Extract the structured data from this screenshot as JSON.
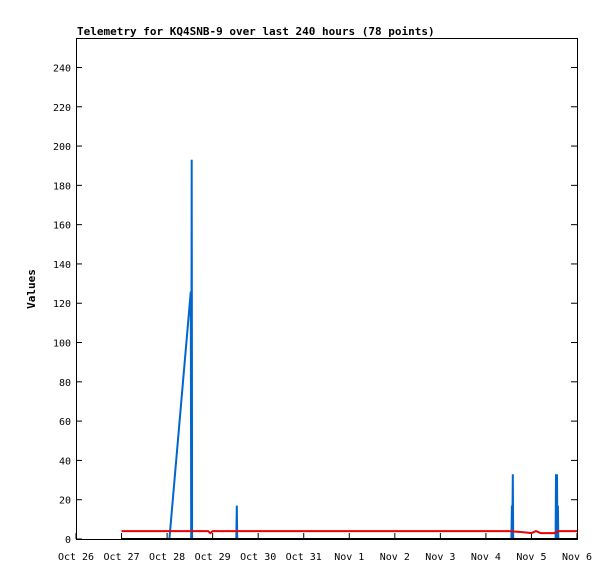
{
  "chart_data": {
    "type": "line",
    "title": "Telemetry for KQ4SNB-9 over last 240 hours (78 points)",
    "ylabel": "Values",
    "xlabel": "",
    "ylim": [
      0,
      255
    ],
    "xlim": [
      0,
      11
    ],
    "yticks": [
      0,
      20,
      40,
      60,
      80,
      100,
      120,
      140,
      160,
      180,
      200,
      220,
      240
    ],
    "x_categories": [
      "Oct 26",
      "Oct 27",
      "Oct 28",
      "Oct 29",
      "Oct 30",
      "Oct 31",
      "Nov 1",
      "Nov 2",
      "Nov 3",
      "Nov 4",
      "Nov 5",
      "Nov 6"
    ],
    "grid": false,
    "series": [
      {
        "color": "#0066cc",
        "points": [
          [
            2.05,
            0
          ],
          [
            2.52,
            126
          ],
          [
            2.53,
            0
          ],
          [
            2.54,
            193
          ],
          [
            2.55,
            0
          ],
          [
            3.52,
            0
          ],
          [
            3.53,
            17
          ],
          [
            3.54,
            0
          ],
          [
            9.56,
            0
          ],
          [
            9.57,
            17
          ],
          [
            9.58,
            0
          ],
          [
            9.59,
            33
          ],
          [
            9.6,
            0
          ],
          [
            10.53,
            0
          ],
          [
            10.54,
            33
          ],
          [
            10.55,
            0
          ],
          [
            10.56,
            33
          ],
          [
            10.57,
            0
          ],
          [
            10.58,
            17
          ],
          [
            10.59,
            0
          ]
        ]
      },
      {
        "color": "#ee0000",
        "points": [
          [
            1.0,
            4
          ],
          [
            2.9,
            4
          ],
          [
            2.95,
            3
          ],
          [
            3.0,
            4
          ],
          [
            9.5,
            4
          ],
          [
            9.8,
            3.5
          ],
          [
            10.0,
            3
          ],
          [
            10.1,
            4
          ],
          [
            10.2,
            3
          ],
          [
            10.5,
            3
          ],
          [
            10.6,
            4
          ],
          [
            11.0,
            4
          ]
        ]
      },
      {
        "color": "#000000",
        "points": [
          [
            1.0,
            0
          ],
          [
            11.0,
            0
          ]
        ]
      }
    ]
  }
}
